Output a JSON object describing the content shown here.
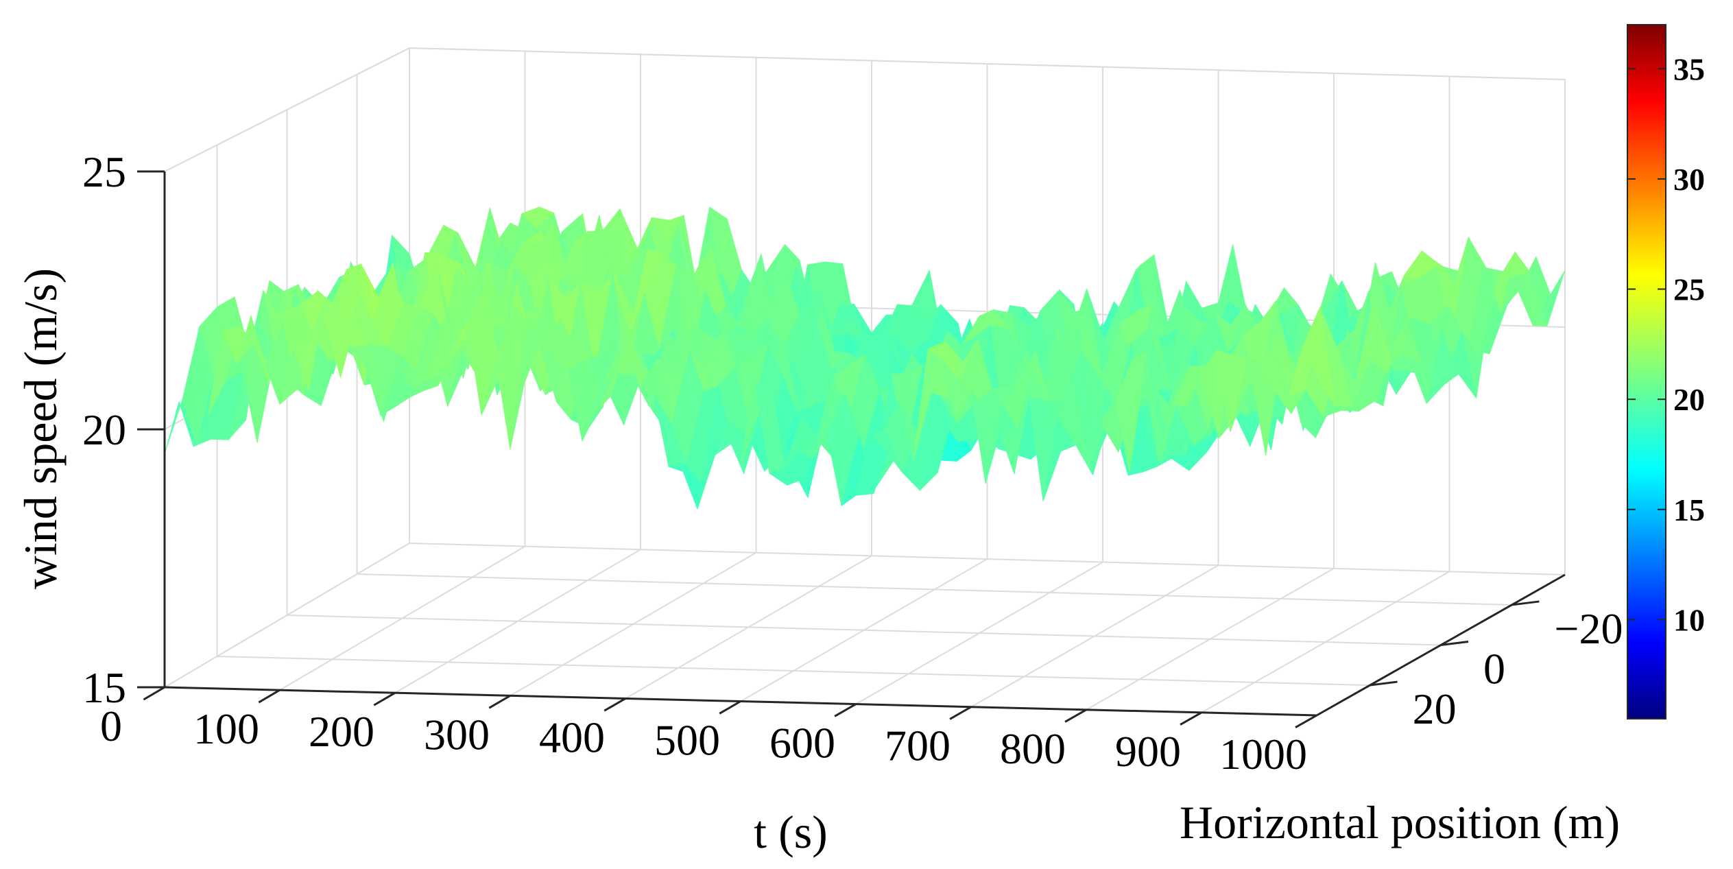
{
  "chart_data": {
    "type": "surface",
    "title": "",
    "xlabel": "t (s)",
    "ylabel": "Horizontal position (m)",
    "zlabel": "wind speed (m/s)",
    "xlim": [
      0,
      1000
    ],
    "ylim": [
      -35,
      35
    ],
    "zlim": [
      15,
      25
    ],
    "x_ticks": [
      "0",
      "100",
      "200",
      "300",
      "400",
      "500",
      "600",
      "700",
      "800",
      "900",
      "1000"
    ],
    "y_ticks": [
      "−20",
      "0",
      "20"
    ],
    "z_ticks": [
      "25",
      "20",
      "15"
    ],
    "grid": true,
    "colormap": "jet",
    "colorbar": {
      "range": [
        5.5,
        37
      ],
      "ticks": [
        "35",
        "30",
        "25",
        "20",
        "15",
        "10"
      ]
    },
    "mean_wind_speed_by_t": {
      "t": [
        0,
        100,
        200,
        300,
        400,
        500,
        550,
        600,
        700,
        800,
        850,
        900,
        1000
      ],
      "value": [
        20.5,
        21.0,
        21.3,
        21.0,
        20.3,
        19.6,
        19.4,
        20.0,
        20.4,
        20.0,
        20.2,
        20.8,
        21.1
      ]
    },
    "turbulence_amplitude": 1.5
  }
}
